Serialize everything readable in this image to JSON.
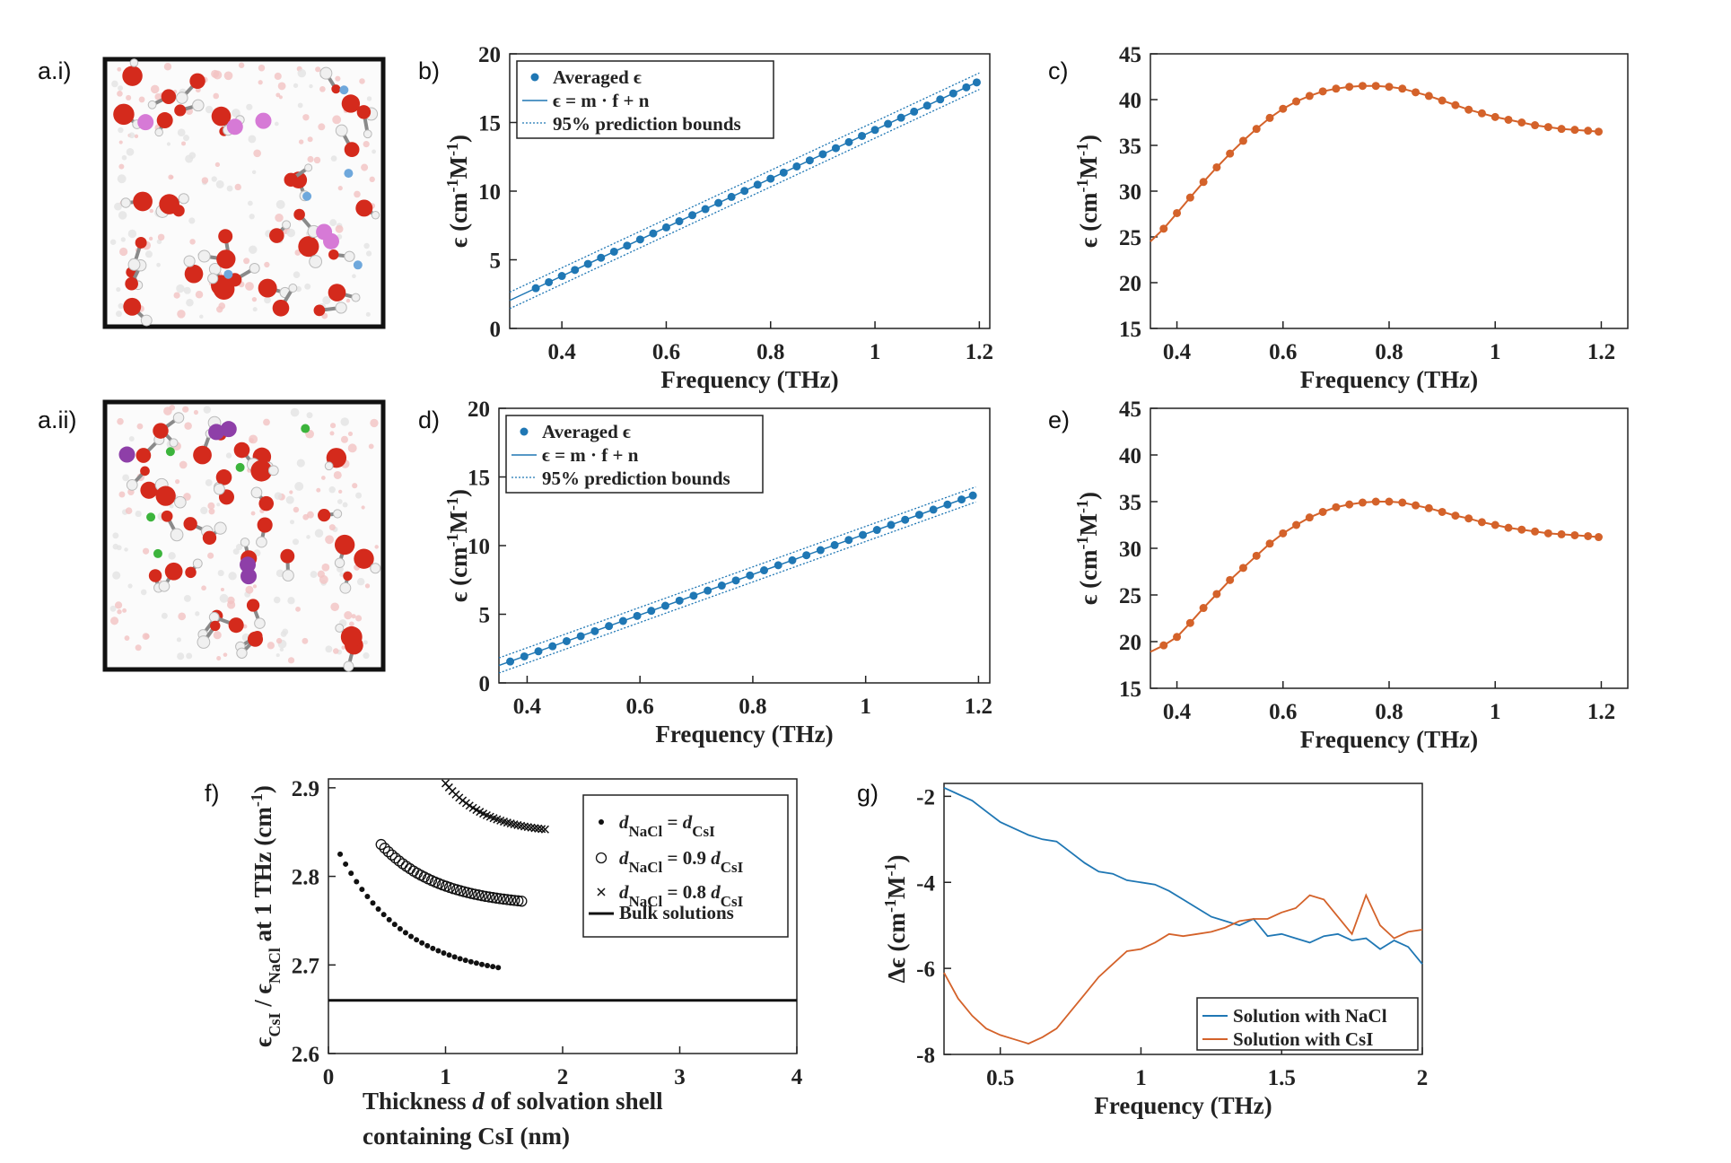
{
  "panel_labels": {
    "ai": "a.i)",
    "aii": "a.ii)",
    "b": "b)",
    "c": "c)",
    "d": "d)",
    "e": "e)",
    "f": "f)",
    "g": "g)"
  },
  "chart_data": [
    {
      "id": "b",
      "type": "scatter",
      "xlabel": "Frequency (THz)",
      "ylabel": "ϵ (cm⁻¹M⁻¹)",
      "xlim": [
        0.3,
        1.22
      ],
      "ylim": [
        0,
        20
      ],
      "xticks": [
        "0.4",
        "0.6",
        "0.8",
        "1",
        "1.2"
      ],
      "yticks": [
        "0",
        "5",
        "10",
        "15",
        "20"
      ],
      "legend": [
        "Averaged ϵ",
        "ϵ = m · f + n",
        "95% prediction bounds"
      ],
      "fit": {
        "m": 17.74,
        "n": -3.28,
        "bound": 0.6
      },
      "x": [
        0.35,
        0.375,
        0.4,
        0.425,
        0.45,
        0.475,
        0.5,
        0.525,
        0.55,
        0.575,
        0.6,
        0.625,
        0.65,
        0.675,
        0.7,
        0.725,
        0.75,
        0.775,
        0.8,
        0.825,
        0.85,
        0.875,
        0.9,
        0.925,
        0.95,
        0.975,
        1.0,
        1.025,
        1.05,
        1.075,
        1.1,
        1.125,
        1.15,
        1.175,
        1.195
      ],
      "y": [
        2.93,
        3.37,
        3.82,
        4.26,
        4.7,
        5.15,
        5.59,
        6.03,
        6.48,
        6.92,
        7.36,
        7.81,
        8.25,
        8.69,
        9.14,
        9.58,
        10.02,
        10.47,
        10.91,
        11.35,
        11.8,
        12.24,
        12.69,
        13.13,
        13.57,
        14.02,
        14.46,
        14.9,
        15.35,
        15.79,
        16.23,
        16.68,
        17.12,
        17.56,
        17.92
      ]
    },
    {
      "id": "c",
      "type": "line",
      "xlabel": "Frequency (THz)",
      "ylabel": "ϵ (cm⁻¹M⁻¹)",
      "xlim": [
        0.35,
        1.25
      ],
      "ylim": [
        15,
        45
      ],
      "xticks": [
        "0.4",
        "0.6",
        "0.8",
        "1",
        "1.2"
      ],
      "yticks": [
        "15",
        "20",
        "25",
        "30",
        "35",
        "40",
        "45"
      ],
      "x": [
        0.35,
        0.375,
        0.4,
        0.425,
        0.45,
        0.475,
        0.5,
        0.525,
        0.55,
        0.575,
        0.6,
        0.625,
        0.65,
        0.675,
        0.7,
        0.725,
        0.75,
        0.775,
        0.8,
        0.825,
        0.85,
        0.875,
        0.9,
        0.925,
        0.95,
        0.975,
        1.0,
        1.025,
        1.05,
        1.075,
        1.1,
        1.125,
        1.15,
        1.175,
        1.195
      ],
      "y": [
        24.5,
        25.9,
        27.6,
        29.3,
        31.0,
        32.6,
        34.1,
        35.5,
        36.8,
        38.0,
        39.0,
        39.8,
        40.4,
        40.9,
        41.2,
        41.4,
        41.5,
        41.5,
        41.4,
        41.2,
        40.8,
        40.4,
        39.9,
        39.4,
        38.9,
        38.5,
        38.1,
        37.8,
        37.5,
        37.2,
        37.0,
        36.8,
        36.7,
        36.6,
        36.5
      ]
    },
    {
      "id": "d",
      "type": "scatter",
      "xlabel": "Frequency (THz)",
      "ylabel": "ϵ (cm⁻¹M⁻¹)",
      "xlim": [
        0.35,
        1.22
      ],
      "ylim": [
        0,
        20
      ],
      "xticks": [
        "0.4",
        "0.6",
        "0.8",
        "1",
        "1.2"
      ],
      "yticks": [
        "0",
        "5",
        "10",
        "15",
        "20"
      ],
      "legend": [
        "Averaged ϵ",
        "ϵ = m · f + n",
        "95% prediction bounds"
      ],
      "fit": {
        "m": 14.74,
        "n": -3.89,
        "bound": 0.55
      },
      "x": [
        0.37,
        0.395,
        0.42,
        0.445,
        0.47,
        0.495,
        0.52,
        0.545,
        0.57,
        0.595,
        0.62,
        0.645,
        0.67,
        0.695,
        0.72,
        0.745,
        0.77,
        0.795,
        0.82,
        0.845,
        0.87,
        0.895,
        0.92,
        0.945,
        0.97,
        0.995,
        1.02,
        1.045,
        1.07,
        1.095,
        1.12,
        1.145,
        1.17,
        1.19
      ],
      "y": [
        1.56,
        1.93,
        2.3,
        2.67,
        3.04,
        3.4,
        3.77,
        4.14,
        4.51,
        4.88,
        5.25,
        5.62,
        5.99,
        6.35,
        6.72,
        7.09,
        7.46,
        7.83,
        8.2,
        8.57,
        8.93,
        9.3,
        9.67,
        10.04,
        10.41,
        10.78,
        11.14,
        11.51,
        11.88,
        12.25,
        12.62,
        12.99,
        13.36,
        13.65
      ]
    },
    {
      "id": "e",
      "type": "line",
      "xlabel": "Frequency (THz)",
      "ylabel": "ϵ (cm⁻¹M⁻¹)",
      "xlim": [
        0.35,
        1.25
      ],
      "ylim": [
        15,
        45
      ],
      "xticks": [
        "0.4",
        "0.6",
        "0.8",
        "1",
        "1.2"
      ],
      "yticks": [
        "15",
        "20",
        "25",
        "30",
        "35",
        "40",
        "45"
      ],
      "x": [
        0.35,
        0.375,
        0.4,
        0.425,
        0.45,
        0.475,
        0.5,
        0.525,
        0.55,
        0.575,
        0.6,
        0.625,
        0.65,
        0.675,
        0.7,
        0.725,
        0.75,
        0.775,
        0.8,
        0.825,
        0.85,
        0.875,
        0.9,
        0.925,
        0.95,
        0.975,
        1.0,
        1.025,
        1.05,
        1.075,
        1.1,
        1.125,
        1.15,
        1.175,
        1.195
      ],
      "y": [
        18.9,
        19.6,
        20.5,
        22.0,
        23.6,
        25.1,
        26.6,
        27.9,
        29.2,
        30.5,
        31.6,
        32.5,
        33.3,
        33.9,
        34.4,
        34.7,
        34.9,
        35.0,
        35.0,
        34.9,
        34.6,
        34.3,
        33.9,
        33.5,
        33.2,
        32.8,
        32.5,
        32.2,
        32.0,
        31.8,
        31.6,
        31.5,
        31.4,
        31.3,
        31.2
      ]
    },
    {
      "id": "f",
      "type": "scatter",
      "xlabel": "Thickness d of solvation shell containing CsI (nm)",
      "ylabel": "ϵCsI / ϵNaCl at 1 THz (cm⁻¹)",
      "xlim": [
        0,
        4
      ],
      "ylim": [
        2.6,
        2.91
      ],
      "xticks": [
        "0",
        "1",
        "2",
        "3",
        "4"
      ],
      "yticks": [
        "2.6",
        "2.7",
        "2.8",
        "2.9"
      ],
      "series": [
        {
          "name": "dNaCl = dCsI",
          "marker": "dot",
          "x0": 0.1,
          "x1": 1.45,
          "y0": 2.825,
          "y1": 2.697
        },
        {
          "name": "dNaCl = 0.9 dCsI",
          "marker": "circle",
          "x0": 0.45,
          "x1": 1.65,
          "y0": 2.836,
          "y1": 2.772
        },
        {
          "name": "dNaCl = 0.8 dCsI",
          "marker": "cross",
          "x0": 1.0,
          "x1": 1.85,
          "y0": 2.905,
          "y1": 2.853
        },
        {
          "name": "Bulk solutions",
          "marker": "line",
          "y": 2.66
        }
      ],
      "legend": {
        "entries": [
          {
            "p1": "d",
            "s1": "NaCl",
            "mid": " = ",
            "p2": "d",
            "s2": "CsI"
          },
          {
            "p1": "d",
            "s1": "NaCl",
            "mid": " = 0.9 ",
            "p2": "d",
            "s2": "CsI"
          },
          {
            "p1": "d",
            "s1": "NaCl",
            "mid": " = 0.8 ",
            "p2": "d",
            "s2": "CsI"
          },
          {
            "text": "Bulk solutions"
          }
        ]
      }
    },
    {
      "id": "g",
      "type": "line",
      "xlabel": "Frequency (THz)",
      "ylabel": "Δϵ (cm⁻¹M⁻¹)",
      "xlim": [
        0.3,
        2.0
      ],
      "ylim": [
        -8,
        -1.7
      ],
      "xticks": [
        "0.5",
        "1",
        "1.5",
        "2"
      ],
      "yticks": [
        "-8",
        "-6",
        "-4",
        "-2"
      ],
      "series": [
        {
          "name": "Solution with NaCl",
          "color": "#1f77b4",
          "x": [
            0.3,
            0.35,
            0.4,
            0.45,
            0.5,
            0.55,
            0.6,
            0.65,
            0.7,
            0.75,
            0.8,
            0.85,
            0.9,
            0.95,
            1.0,
            1.05,
            1.1,
            1.15,
            1.2,
            1.25,
            1.3,
            1.35,
            1.4,
            1.45,
            1.5,
            1.55,
            1.6,
            1.65,
            1.7,
            1.75,
            1.8,
            1.85,
            1.9,
            1.95,
            2.0
          ],
          "y": [
            -1.8,
            -1.95,
            -2.1,
            -2.35,
            -2.6,
            -2.75,
            -2.9,
            -3.0,
            -3.05,
            -3.3,
            -3.55,
            -3.75,
            -3.8,
            -3.95,
            -4.0,
            -4.05,
            -4.2,
            -4.4,
            -4.6,
            -4.8,
            -4.9,
            -5.0,
            -4.85,
            -5.25,
            -5.2,
            -5.3,
            -5.4,
            -5.25,
            -5.2,
            -5.35,
            -5.3,
            -5.55,
            -5.35,
            -5.5,
            -5.9
          ]
        },
        {
          "name": "Solution with CsI",
          "color": "#d4622a",
          "x": [
            0.3,
            0.35,
            0.4,
            0.45,
            0.5,
            0.55,
            0.6,
            0.65,
            0.7,
            0.75,
            0.8,
            0.85,
            0.9,
            0.95,
            1.0,
            1.05,
            1.1,
            1.15,
            1.2,
            1.25,
            1.3,
            1.35,
            1.4,
            1.45,
            1.5,
            1.55,
            1.6,
            1.65,
            1.7,
            1.75,
            1.8,
            1.85,
            1.9,
            1.95,
            2.0
          ],
          "y": [
            -6.1,
            -6.7,
            -7.1,
            -7.4,
            -7.55,
            -7.65,
            -7.75,
            -7.6,
            -7.4,
            -7.0,
            -6.6,
            -6.2,
            -5.9,
            -5.6,
            -5.55,
            -5.4,
            -5.2,
            -5.25,
            -5.2,
            -5.15,
            -5.05,
            -4.9,
            -4.85,
            -4.85,
            -4.7,
            -4.6,
            -4.3,
            -4.4,
            -4.8,
            -5.2,
            -4.3,
            -5.0,
            -5.3,
            -5.15,
            -5.1
          ]
        }
      ]
    }
  ]
}
